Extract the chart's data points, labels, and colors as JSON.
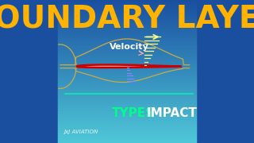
{
  "title": "BOUNDARY LAYER",
  "title_color": "#FFB300",
  "title_fontsize": 28,
  "bg_color_top": "#1a4fa0",
  "bg_color_bottom": "#4fc8d8",
  "velocity_label": "Velocity",
  "velocity_color": "#FFFFFF",
  "types_label": "TYPES",
  "types_color": "#00FF88",
  "impact_label": "IMPACT",
  "impact_color": "#FFFFFF",
  "brand_label": "JxJ AVIATION",
  "brand_color": "#FFFFFF",
  "airfoil_fill": "#FFCCBB",
  "airfoil_stroke": "#CC0000",
  "streamline_color": "#CCAA44",
  "velocity_arrow_color": "#FFFF88",
  "profile_line_color": "#8888FF"
}
